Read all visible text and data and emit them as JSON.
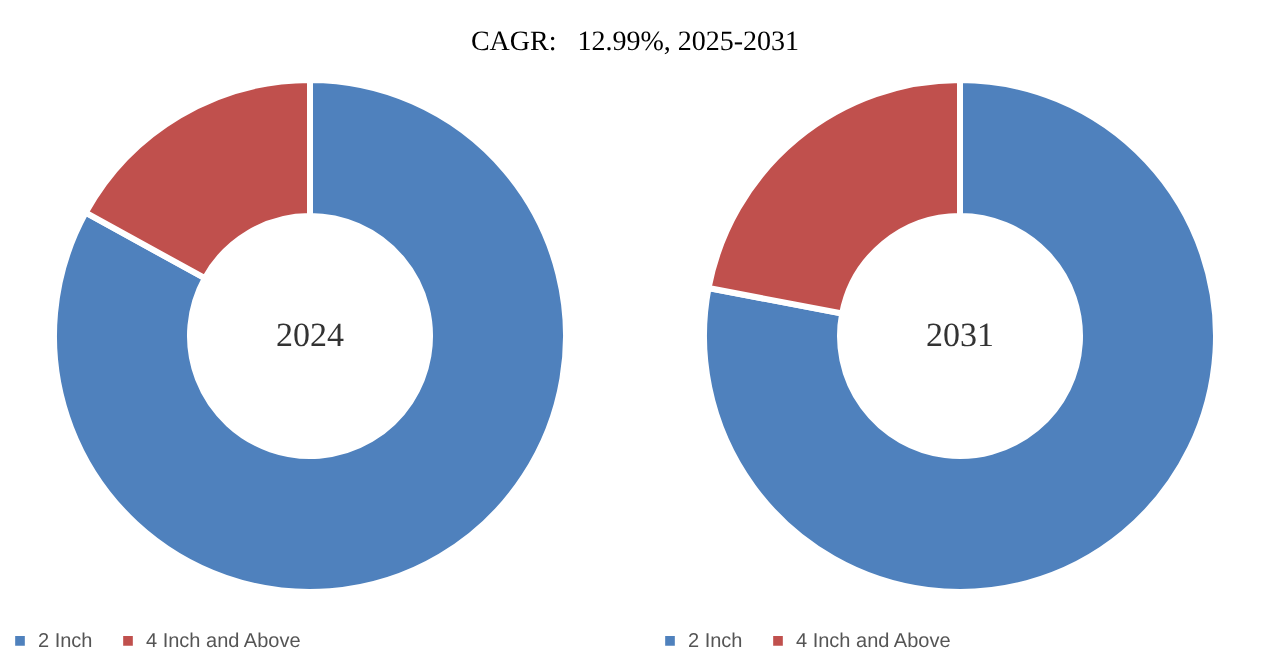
{
  "chart_data": [
    {
      "type": "donut",
      "title": "CAGR:   12.99%, 2025-2031",
      "categories": [
        "2 Inch",
        "4 Inch and Above"
      ],
      "values": [
        83,
        17
      ],
      "colors": [
        "#4f81bd",
        "#c0504d"
      ],
      "annotations": [
        "2024"
      ],
      "legend": "bottom"
    },
    {
      "type": "donut",
      "categories": [
        "2 Inch",
        "4 Inch and Above"
      ],
      "values": [
        78,
        22
      ],
      "colors": [
        "#4f81bd",
        "#c0504d"
      ],
      "annotations": [
        "2031"
      ],
      "legend": "bottom"
    }
  ]
}
